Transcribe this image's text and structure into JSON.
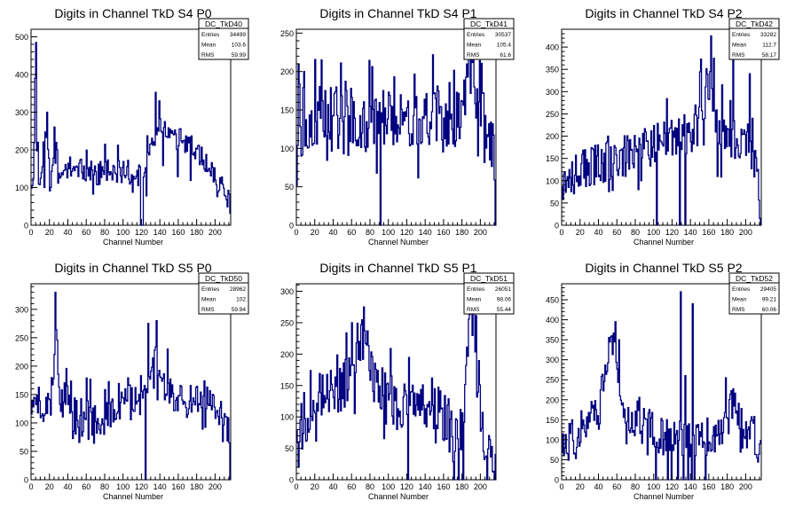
{
  "chart_data": [
    {
      "type": "histogram",
      "title": "Digits in Channel TkD S4 P0",
      "xlabel": "Channel Number",
      "xlim": [
        0,
        217
      ],
      "ylim": [
        0,
        520
      ],
      "x_ticks": [
        0,
        20,
        40,
        60,
        80,
        100,
        120,
        140,
        160,
        180,
        200
      ],
      "y_ticks": [
        0,
        100,
        200,
        300,
        400,
        500
      ],
      "stats": {
        "name": "DC_TkD40",
        "entries": "34499",
        "mean": "103.6",
        "rms": "59.99"
      },
      "anchors": [
        [
          0,
          105
        ],
        [
          3,
          160
        ],
        [
          5,
          470
        ],
        [
          6,
          200
        ],
        [
          9,
          120
        ],
        [
          12,
          100
        ],
        [
          14,
          230
        ],
        [
          18,
          260
        ],
        [
          21,
          85
        ],
        [
          25,
          200
        ],
        [
          30,
          110
        ],
        [
          40,
          160
        ],
        [
          50,
          140
        ],
        [
          60,
          150
        ],
        [
          70,
          130
        ],
        [
          80,
          150
        ],
        [
          90,
          135
        ],
        [
          100,
          145
        ],
        [
          110,
          140
        ],
        [
          119,
          130
        ],
        [
          121,
          100
        ],
        [
          125,
          155
        ],
        [
          130,
          190
        ],
        [
          135,
          250
        ],
        [
          140,
          280
        ],
        [
          145,
          260
        ],
        [
          150,
          240
        ],
        [
          160,
          230
        ],
        [
          170,
          210
        ],
        [
          180,
          200
        ],
        [
          190,
          160
        ],
        [
          200,
          135
        ],
        [
          205,
          110
        ],
        [
          210,
          90
        ],
        [
          214,
          75
        ],
        [
          216,
          55
        ]
      ],
      "noise": 32,
      "seed": 11,
      "dips": [
        [
          119,
          0
        ],
        [
          120,
          0
        ],
        [
          121,
          0
        ]
      ],
      "spikes": [
        [
          5,
          485
        ],
        [
          4,
          390
        ],
        [
          17,
          300
        ],
        [
          14,
          100
        ],
        [
          27,
          220
        ],
        [
          139,
          330
        ]
      ]
    },
    {
      "type": "histogram",
      "title": "Digits in Channel TkD S4 P1",
      "xlabel": "Channel Number",
      "xlim": [
        0,
        217
      ],
      "ylim": [
        0,
        255
      ],
      "x_ticks": [
        0,
        20,
        40,
        60,
        80,
        100,
        120,
        140,
        160,
        180,
        200
      ],
      "y_ticks": [
        0,
        50,
        100,
        150,
        200,
        250
      ],
      "stats": {
        "name": "DC_TkD41",
        "entries": "30537",
        "mean": "105.4",
        "rms": "61.6"
      },
      "anchors": [
        [
          0,
          55
        ],
        [
          3,
          150
        ],
        [
          6,
          170
        ],
        [
          10,
          130
        ],
        [
          20,
          140
        ],
        [
          30,
          150
        ],
        [
          40,
          145
        ],
        [
          50,
          155
        ],
        [
          60,
          140
        ],
        [
          70,
          135
        ],
        [
          80,
          140
        ],
        [
          90,
          135
        ],
        [
          100,
          140
        ],
        [
          110,
          145
        ],
        [
          120,
          140
        ],
        [
          130,
          135
        ],
        [
          140,
          140
        ],
        [
          150,
          145
        ],
        [
          160,
          140
        ],
        [
          170,
          135
        ],
        [
          180,
          150
        ],
        [
          185,
          180
        ],
        [
          190,
          200
        ],
        [
          195,
          170
        ],
        [
          200,
          150
        ],
        [
          205,
          140
        ],
        [
          210,
          110
        ],
        [
          214,
          90
        ],
        [
          216,
          80
        ]
      ],
      "noise": 38,
      "seed": 23,
      "dips": [
        [
          91,
          0
        ],
        [
          216,
          0
        ],
        [
          217,
          0
        ]
      ],
      "spikes": [
        [
          2,
          210
        ],
        [
          5,
          90
        ],
        [
          8,
          200
        ],
        [
          27,
          215
        ],
        [
          45,
          100
        ],
        [
          188,
          228
        ],
        [
          192,
          240
        ]
      ]
    },
    {
      "type": "histogram",
      "title": "Digits in Channel TkD S4 P2",
      "xlabel": "Channel Number",
      "xlim": [
        0,
        217
      ],
      "ylim": [
        0,
        440
      ],
      "x_ticks": [
        0,
        20,
        40,
        60,
        80,
        100,
        120,
        140,
        160,
        180,
        200
      ],
      "y_ticks": [
        0,
        50,
        100,
        150,
        200,
        250,
        300,
        350,
        400
      ],
      "stats": {
        "name": "DC_TkD42",
        "entries": "33282",
        "mean": "112.7",
        "rms": "58.17"
      },
      "anchors": [
        [
          0,
          110
        ],
        [
          10,
          115
        ],
        [
          20,
          125
        ],
        [
          30,
          130
        ],
        [
          40,
          140
        ],
        [
          50,
          145
        ],
        [
          60,
          150
        ],
        [
          70,
          155
        ],
        [
          80,
          165
        ],
        [
          90,
          170
        ],
        [
          100,
          180
        ],
        [
          110,
          185
        ],
        [
          120,
          190
        ],
        [
          130,
          200
        ],
        [
          140,
          210
        ],
        [
          150,
          230
        ],
        [
          155,
          300
        ],
        [
          160,
          330
        ],
        [
          165,
          280
        ],
        [
          170,
          220
        ],
        [
          180,
          200
        ],
        [
          190,
          195
        ],
        [
          200,
          190
        ],
        [
          205,
          170
        ],
        [
          210,
          140
        ],
        [
          213,
          100
        ],
        [
          215,
          40
        ]
      ],
      "noise": 48,
      "seed": 37,
      "dips": [
        [
          103,
          0
        ],
        [
          128,
          0
        ],
        [
          134,
          0
        ],
        [
          216,
          0
        ]
      ],
      "spikes": [
        [
          162,
          425
        ],
        [
          165,
          375
        ],
        [
          155,
          240
        ],
        [
          145,
          270
        ],
        [
          183,
          280
        ],
        [
          186,
          400
        ],
        [
          204,
          340
        ]
      ]
    },
    {
      "type": "histogram",
      "title": "Digits in Channel TkD S5 P0",
      "xlabel": "Channel Number",
      "xlim": [
        0,
        217
      ],
      "ylim": [
        0,
        345
      ],
      "x_ticks": [
        0,
        20,
        40,
        60,
        80,
        100,
        120,
        140,
        160,
        180,
        200
      ],
      "y_ticks": [
        0,
        50,
        100,
        150,
        200,
        250,
        300
      ],
      "stats": {
        "name": "DC_TkD50",
        "entries": "28962",
        "mean": "102",
        "rms": "59.94"
      },
      "anchors": [
        [
          0,
          130
        ],
        [
          5,
          150
        ],
        [
          10,
          120
        ],
        [
          15,
          140
        ],
        [
          20,
          160
        ],
        [
          25,
          200
        ],
        [
          28,
          250
        ],
        [
          32,
          150
        ],
        [
          40,
          130
        ],
        [
          50,
          110
        ],
        [
          60,
          120
        ],
        [
          70,
          115
        ],
        [
          80,
          110
        ],
        [
          90,
          120
        ],
        [
          100,
          130
        ],
        [
          110,
          140
        ],
        [
          120,
          150
        ],
        [
          125,
          145
        ],
        [
          128,
          180
        ],
        [
          132,
          230
        ],
        [
          135,
          240
        ],
        [
          140,
          190
        ],
        [
          150,
          160
        ],
        [
          160,
          150
        ],
        [
          170,
          140
        ],
        [
          180,
          150
        ],
        [
          190,
          140
        ],
        [
          200,
          120
        ],
        [
          210,
          95
        ],
        [
          215,
          80
        ]
      ],
      "noise": 34,
      "seed": 51,
      "dips": [
        [
          124,
          0
        ],
        [
          216,
          0
        ]
      ],
      "spikes": [
        [
          26,
          330
        ],
        [
          127,
          275
        ],
        [
          136,
          280
        ],
        [
          148,
          230
        ]
      ]
    },
    {
      "type": "histogram",
      "title": "Digits in Channel TkD S5 P1",
      "xlabel": "Channel Number",
      "xlim": [
        0,
        217
      ],
      "ylim": [
        0,
        312
      ],
      "x_ticks": [
        0,
        20,
        40,
        60,
        80,
        100,
        120,
        140,
        160,
        180,
        200
      ],
      "y_ticks": [
        0,
        50,
        100,
        150,
        200,
        250,
        300
      ],
      "stats": {
        "name": "DC_TkD51",
        "entries": "26051",
        "mean": "98.06",
        "rms": "55.44"
      },
      "anchors": [
        [
          0,
          100
        ],
        [
          5,
          80
        ],
        [
          10,
          100
        ],
        [
          20,
          130
        ],
        [
          30,
          135
        ],
        [
          40,
          140
        ],
        [
          50,
          150
        ],
        [
          60,
          160
        ],
        [
          65,
          200
        ],
        [
          70,
          230
        ],
        [
          75,
          210
        ],
        [
          80,
          180
        ],
        [
          90,
          150
        ],
        [
          100,
          140
        ],
        [
          110,
          120
        ],
        [
          120,
          130
        ],
        [
          125,
          140
        ],
        [
          130,
          135
        ],
        [
          140,
          120
        ],
        [
          150,
          110
        ],
        [
          160,
          100
        ],
        [
          170,
          70
        ],
        [
          175,
          60
        ],
        [
          180,
          80
        ],
        [
          185,
          180
        ],
        [
          190,
          280
        ],
        [
          195,
          230
        ],
        [
          200,
          130
        ],
        [
          205,
          60
        ],
        [
          210,
          30
        ],
        [
          215,
          20
        ]
      ],
      "noise": 42,
      "seed": 67,
      "dips": [
        [
          121,
          0
        ],
        [
          171,
          0
        ],
        [
          176,
          0
        ],
        [
          181,
          0
        ],
        [
          207,
          0
        ],
        [
          215,
          0
        ]
      ],
      "spikes": [
        [
          73,
          275
        ],
        [
          60,
          250
        ],
        [
          190,
          300
        ],
        [
          193,
          295
        ],
        [
          2,
          20
        ]
      ]
    },
    {
      "type": "histogram",
      "title": "Digits in Channel TkD S5 P2",
      "xlabel": "Channel Number",
      "xlim": [
        0,
        217
      ],
      "ylim": [
        0,
        490
      ],
      "x_ticks": [
        0,
        20,
        40,
        60,
        80,
        100,
        120,
        140,
        160,
        180,
        200
      ],
      "y_ticks": [
        0,
        50,
        100,
        150,
        200,
        250,
        300,
        350,
        400,
        450
      ],
      "stats": {
        "name": "DC_TkD52",
        "entries": "29405",
        "mean": "99.21",
        "rms": "60.06"
      },
      "anchors": [
        [
          0,
          90
        ],
        [
          10,
          100
        ],
        [
          20,
          130
        ],
        [
          30,
          150
        ],
        [
          40,
          180
        ],
        [
          45,
          260
        ],
        [
          50,
          320
        ],
        [
          55,
          360
        ],
        [
          60,
          280
        ],
        [
          65,
          200
        ],
        [
          70,
          160
        ],
        [
          80,
          150
        ],
        [
          90,
          130
        ],
        [
          100,
          120
        ],
        [
          110,
          110
        ],
        [
          120,
          100
        ],
        [
          130,
          110
        ],
        [
          140,
          100
        ],
        [
          150,
          100
        ],
        [
          160,
          110
        ],
        [
          170,
          120
        ],
        [
          180,
          150
        ],
        [
          185,
          190
        ],
        [
          190,
          160
        ],
        [
          200,
          130
        ],
        [
          210,
          110
        ],
        [
          215,
          80
        ]
      ],
      "noise": 48,
      "seed": 83,
      "dips": [
        [
          102,
          0
        ],
        [
          115,
          0
        ],
        [
          119,
          0
        ],
        [
          126,
          0
        ],
        [
          132,
          0
        ],
        [
          137,
          0
        ],
        [
          141,
          0
        ],
        [
          144,
          0
        ],
        [
          156,
          0
        ]
      ],
      "spikes": [
        [
          54,
          360
        ],
        [
          58,
          395
        ],
        [
          62,
          350
        ],
        [
          129,
          470
        ],
        [
          134,
          260
        ],
        [
          142,
          440
        ],
        [
          178,
          255
        ],
        [
          2,
          60
        ]
      ]
    }
  ]
}
